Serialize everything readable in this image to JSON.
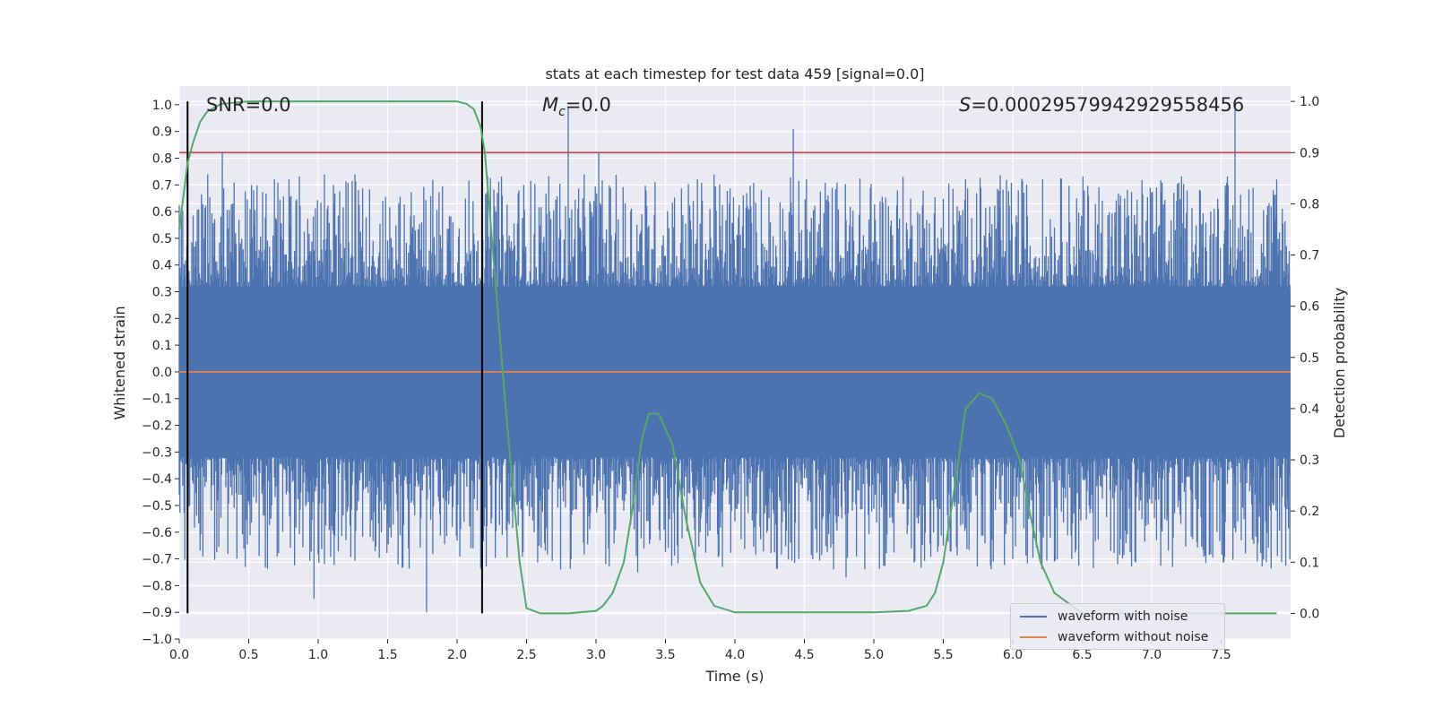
{
  "chart_data": {
    "type": "line",
    "title": "stats at each timestep for test data 459 [signal=0.0]",
    "xlabel": "Time (s)",
    "ylabel": "Whitened strain",
    "y2label": "Detection probability",
    "xlim": [
      0,
      8
    ],
    "ylim": [
      -1.0,
      1.07
    ],
    "y2lim": [
      -0.05,
      1.03
    ],
    "x_ticks": [
      "0.0",
      "0.5",
      "1.0",
      "1.5",
      "2.0",
      "2.5",
      "3.0",
      "3.5",
      "4.0",
      "4.5",
      "5.0",
      "5.5",
      "6.0",
      "6.5",
      "7.0",
      "7.5"
    ],
    "y_ticks": [
      "1.0",
      "0.9",
      "0.8",
      "0.7",
      "0.6",
      "0.5",
      "0.4",
      "0.3",
      "0.2",
      "0.1",
      "0.0",
      "−0.1",
      "−0.2",
      "−0.3",
      "−0.4",
      "−0.5",
      "−0.6",
      "−0.7",
      "−0.8",
      "−0.9",
      "−1.0"
    ],
    "y2_ticks": [
      "1.0",
      "0.9",
      "0.8",
      "0.7",
      "0.6",
      "0.5",
      "0.4",
      "0.3",
      "0.2",
      "0.1",
      "0.0"
    ],
    "annotations": {
      "snr": "SNR=0.0",
      "mc_symbol": "M",
      "mc_sub": "c",
      "mc_value": "=0.0",
      "s_symbol": "S",
      "s_value": "=0.00029579942929558456"
    },
    "threshold_line": {
      "value": 0.9,
      "axis": "y2",
      "color": "#c44e52"
    },
    "vertical_lines": [
      0.06,
      2.18
    ],
    "series": [
      {
        "name": "waveform with noise",
        "color": "#4c72b0",
        "kind": "noise",
        "core_band": [
          -0.3,
          0.3
        ],
        "typical_extent": [
          -0.6,
          0.6
        ],
        "peaks": [
          [
            0.31,
            0.82
          ],
          [
            2.8,
            0.99
          ],
          [
            3.02,
            0.82
          ],
          [
            4.42,
            0.91
          ],
          [
            7.6,
            0.98
          ],
          [
            7.9,
            0.72
          ]
        ],
        "troughs": [
          [
            1.78,
            -0.9
          ],
          [
            0.97,
            -0.85
          ],
          [
            3.3,
            -0.75
          ],
          [
            4.8,
            -0.77
          ],
          [
            6.0,
            -0.7
          ],
          [
            7.52,
            -0.71
          ]
        ]
      },
      {
        "name": "waveform without noise",
        "color": "#dd8452",
        "kind": "flat",
        "value": 0.0
      },
      {
        "name": "detection probability",
        "color": "#55a868",
        "axis": "y2",
        "x": [
          0.0,
          0.06,
          0.1,
          0.15,
          0.2,
          0.3,
          0.5,
          1.0,
          1.5,
          2.0,
          2.07,
          2.12,
          2.17,
          2.2,
          2.26,
          2.35,
          2.45,
          2.5,
          2.6,
          2.8,
          3.0,
          3.05,
          3.12,
          3.2,
          3.26,
          3.33,
          3.38,
          3.45,
          3.55,
          3.65,
          3.75,
          3.85,
          4.0,
          5.0,
          5.25,
          5.38,
          5.44,
          5.5,
          5.6,
          5.66,
          5.76,
          5.85,
          5.95,
          6.05,
          6.12,
          6.2,
          6.3,
          6.5,
          7.0,
          7.9
        ],
        "y": [
          0.75,
          0.88,
          0.92,
          0.96,
          0.98,
          0.995,
          1.0,
          1.0,
          1.0,
          1.0,
          0.995,
          0.985,
          0.95,
          0.9,
          0.7,
          0.4,
          0.1,
          0.01,
          0.0,
          0.0,
          0.005,
          0.015,
          0.04,
          0.1,
          0.2,
          0.34,
          0.39,
          0.39,
          0.33,
          0.18,
          0.06,
          0.015,
          0.002,
          0.002,
          0.005,
          0.015,
          0.04,
          0.1,
          0.28,
          0.4,
          0.43,
          0.42,
          0.37,
          0.3,
          0.2,
          0.1,
          0.04,
          0.0,
          0.0,
          0.0
        ]
      }
    ],
    "legend": [
      "waveform with noise",
      "waveform without noise"
    ],
    "legend_position": "bottom-right",
    "grid": true
  }
}
